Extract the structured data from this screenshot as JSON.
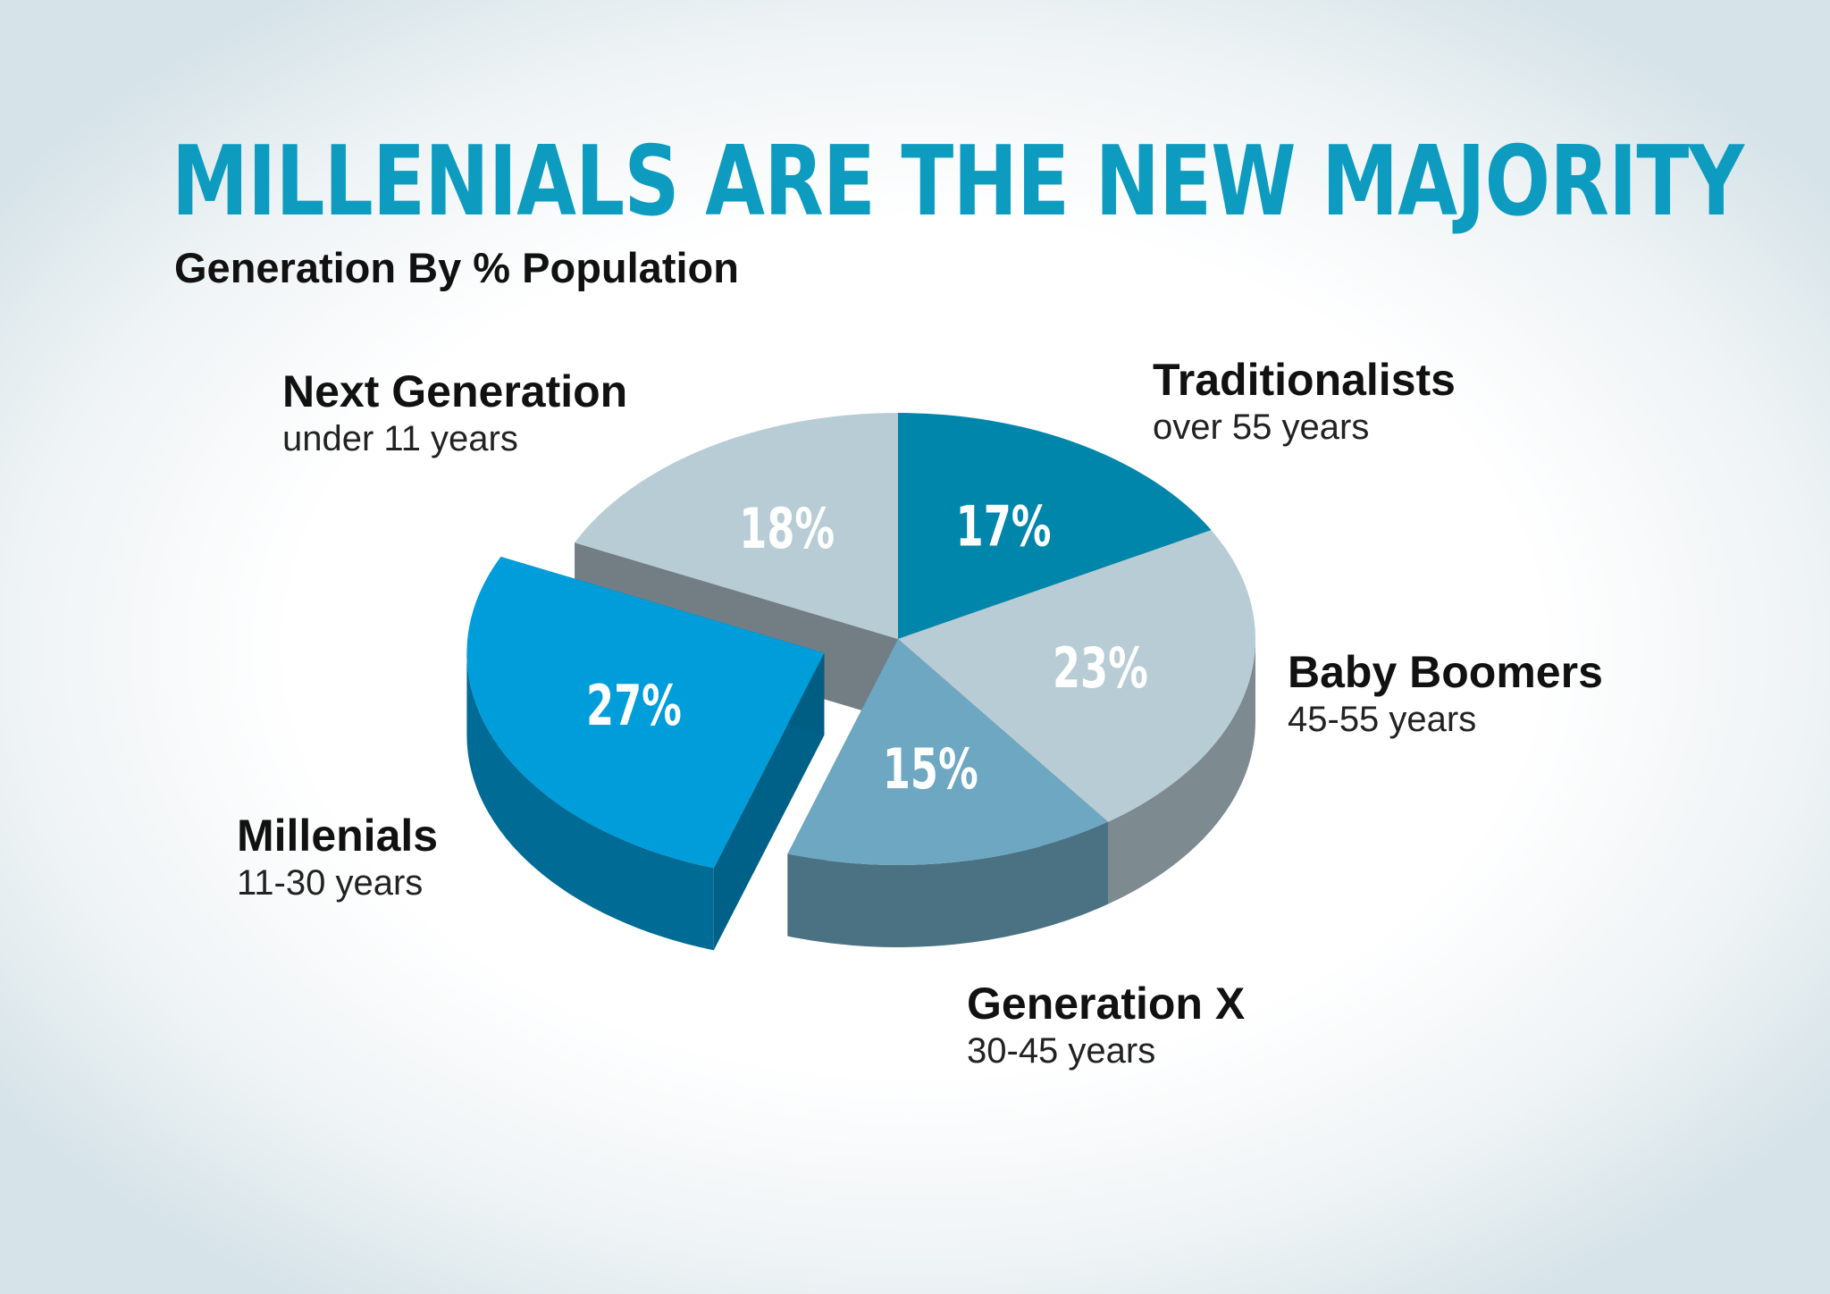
{
  "title": "MILLENIALS ARE THE NEW MAJORITY",
  "subtitle": "Generation By % Population",
  "chart_data": {
    "type": "pie",
    "title": "MILLENIALS ARE THE NEW MAJORITY",
    "subtitle": "Generation By % Population",
    "slices": [
      {
        "name": "Traditionalists",
        "range": "over 55 years",
        "value": 17,
        "label": "17%",
        "color": "#0086ab",
        "exploded": false
      },
      {
        "name": "Baby Boomers",
        "range": "45-55 years",
        "value": 23,
        "label": "23%",
        "color": "#b8ccd5",
        "exploded": false
      },
      {
        "name": "Generation X",
        "range": "30-45 years",
        "value": 15,
        "label": "15%",
        "color": "#6ea7c1",
        "exploded": false
      },
      {
        "name": "Millenials",
        "range": "11-30 years",
        "value": 27,
        "label": "27%",
        "color": "#009ddb",
        "exploded": true
      },
      {
        "name": "Next Generation",
        "range": "under 11 years",
        "value": 18,
        "label": "18%",
        "color": "#b8ccd5",
        "exploded": false
      }
    ]
  }
}
